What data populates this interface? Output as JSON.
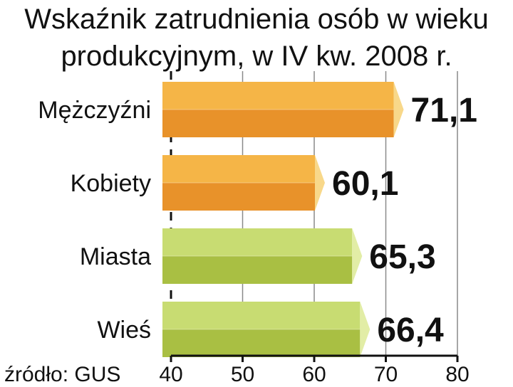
{
  "chart_data": {
    "type": "bar",
    "orientation": "horizontal",
    "title_lines": [
      "Wskaźnik zatrudnienia osób w wieku",
      "produkcyjnym, w IV kw. 2008 r."
    ],
    "categories": [
      "Mężczyźni",
      "Kobiety",
      "Miasta",
      "Wieś"
    ],
    "values": [
      71.1,
      60.1,
      65.3,
      66.4
    ],
    "value_labels": [
      "71,1",
      "60,1",
      "65,3",
      "66,4"
    ],
    "xlim": [
      40,
      80
    ],
    "x_ticks": [
      40,
      50,
      60,
      70,
      80
    ],
    "grid": true,
    "source": "źródło: GUS",
    "colors": {
      "gender_top": "#F5B547",
      "gender_bottom": "#E8922A",
      "gender_cap": "#F8D88A",
      "place_top": "#C8DC72",
      "place_bottom": "#A9BF43",
      "place_cap": "#E2EDA6"
    },
    "bar_color_groups": [
      "gender",
      "gender",
      "place",
      "place"
    ]
  }
}
